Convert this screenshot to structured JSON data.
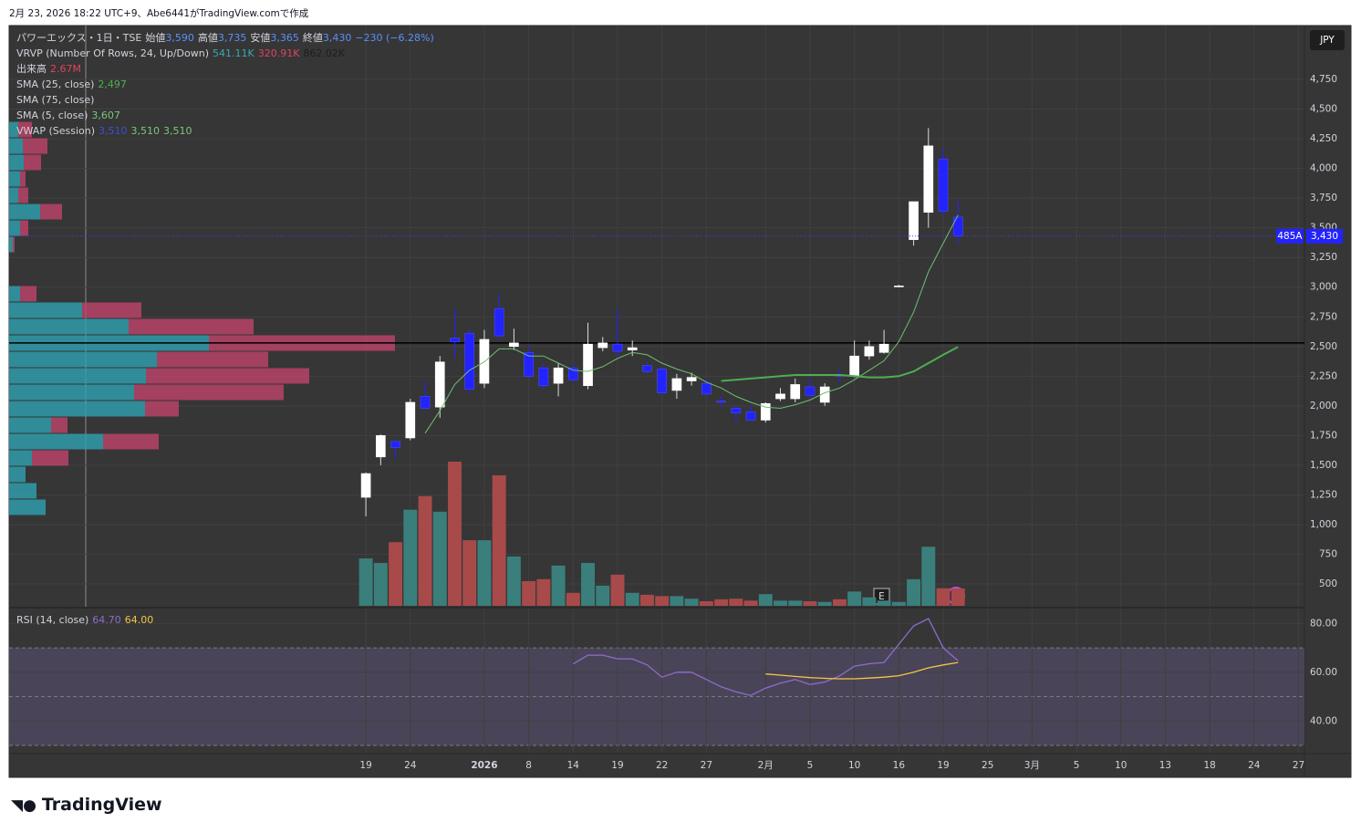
{
  "header": {
    "text": "2月 23, 2026 18:22 UTC+9、Abe6441がTradingView.comで作成"
  },
  "footer": {
    "logo": "TradingView"
  },
  "legend": {
    "main": {
      "symbol": "パワーエックス・1日・TSE",
      "open_label": "始値",
      "open": "3,590",
      "high_label": "高値",
      "high": "3,735",
      "low_label": "安値",
      "low": "3,365",
      "close_label": "終値",
      "close": "3,430",
      "change": "−230 (−6.28%)"
    },
    "vrvp": {
      "name": "VRVP (Number Of Rows, 24, Up/Down)",
      "values": [
        "541.11K",
        "320.91K",
        "862.02K"
      ]
    },
    "volume": {
      "name": "出来高",
      "value": "2.67M"
    },
    "sma25": {
      "name": "SMA (25, close)",
      "value": "2,497"
    },
    "sma75": {
      "name": "SMA (75, close)"
    },
    "sma5": {
      "name": "SMA (5, close)",
      "value": "3,607"
    },
    "vwap": {
      "name": "VWAP (Session)",
      "values": [
        "3,510",
        "3,510",
        "3,510"
      ]
    },
    "rsi": {
      "name": "RSI (14, close)",
      "values": [
        "64.70",
        "64.00"
      ]
    }
  },
  "chart_data": {
    "type": "candlestick",
    "currency": "JPY",
    "last_price_label": "3,430",
    "symbol_badge": "485A",
    "up_color": "#ffffff",
    "down_color": "#2323ff",
    "volume_up_color": "#3a7f7c",
    "volume_down_color": "#a84a4a",
    "open": [
      1230,
      1570,
      1700,
      1730,
      2080,
      1990,
      2570,
      2610,
      2190,
      2820,
      2500,
      2450,
      2320,
      2190,
      2320,
      2170,
      2490,
      2520,
      2470,
      2340,
      2310,
      2130,
      2210,
      2190,
      2040,
      1980,
      1950,
      1880,
      2060,
      2060,
      2160,
      2030,
      2260,
      2250,
      2420,
      2450,
      3010,
      3400,
      3630,
      4080,
      3590
    ],
    "high": [
      1440,
      1760,
      1720,
      2060,
      2200,
      2420,
      2820,
      2650,
      2640,
      2940,
      2650,
      2510,
      2360,
      2360,
      2360,
      2700,
      2580,
      2820,
      2550,
      2370,
      2330,
      2270,
      2280,
      2230,
      2080,
      2010,
      2010,
      2030,
      2150,
      2230,
      2240,
      2190,
      2310,
      2550,
      2550,
      2640,
      3020,
      3720,
      4340,
      4170,
      3735
    ],
    "low": [
      1070,
      1500,
      1560,
      1710,
      1960,
      1900,
      2400,
      2100,
      2150,
      2560,
      2470,
      2230,
      2140,
      2080,
      2190,
      2140,
      2460,
      2410,
      2420,
      2270,
      2090,
      2060,
      2170,
      2080,
      1990,
      1860,
      1870,
      1860,
      2040,
      2030,
      2060,
      2000,
      2200,
      2240,
      2390,
      2440,
      3000,
      3350,
      3500,
      3600,
      3365
    ],
    "close": [
      1430,
      1750,
      1650,
      2030,
      1980,
      2370,
      2540,
      2140,
      2560,
      2590,
      2530,
      2250,
      2170,
      2320,
      2220,
      2520,
      2530,
      2460,
      2490,
      2290,
      2110,
      2230,
      2240,
      2100,
      2030,
      1940,
      1880,
      2020,
      2100,
      2180,
      2090,
      2160,
      2250,
      2420,
      2500,
      2520,
      3010,
      3720,
      4190,
      3640,
      3430
    ],
    "volume": [
      7.3,
      6.6,
      9.8,
      14.8,
      16.9,
      14.5,
      22.2,
      10.1,
      10.1,
      20.1,
      7.6,
      3.8,
      4.1,
      6.2,
      2.0,
      6.6,
      3.1,
      4.8,
      2.0,
      1.7,
      1.5,
      1.5,
      1.1,
      0.7,
      1.0,
      1.1,
      0.8,
      1.8,
      0.8,
      0.8,
      0.7,
      0.6,
      1.0,
      2.2,
      1.3,
      0.8,
      0.6,
      4.1,
      9.1,
      2.7,
      2.67
    ],
    "volume_lim": [
      0,
      26.7
    ],
    "sma5": {
      "color": "#6fbf73",
      "values": [
        null,
        null,
        null,
        null,
        1770,
        1960,
        2180,
        2300,
        2370,
        2480,
        2480,
        2420,
        2420,
        2360,
        2300,
        2290,
        2330,
        2400,
        2450,
        2430,
        2360,
        2310,
        2270,
        2200,
        2150,
        2080,
        2030,
        1990,
        1980,
        2010,
        2050,
        2110,
        2150,
        2220,
        2300,
        2380,
        2540,
        2790,
        3130,
        3370,
        3607
      ]
    },
    "sma25": {
      "color": "#4caf50",
      "values": [
        null,
        null,
        null,
        null,
        null,
        null,
        null,
        null,
        null,
        null,
        null,
        null,
        null,
        null,
        null,
        null,
        null,
        null,
        null,
        null,
        null,
        null,
        null,
        null,
        2210,
        2220,
        2230,
        2240,
        2250,
        2260,
        2260,
        2260,
        2260,
        2250,
        2240,
        2240,
        2250,
        2290,
        2360,
        2430,
        2497
      ]
    },
    "hline": {
      "value": 2530,
      "color": "#000000"
    },
    "vrvp": {
      "price_range": [
        1077,
        4396
      ],
      "lim": [
        0,
        423
      ],
      "up_color": "#2ea3b1",
      "down_color": "#c0436b",
      "up": [
        10,
        15,
        16,
        12,
        10,
        34,
        12,
        4,
        0,
        0,
        12,
        80,
        131,
        219,
        162,
        150,
        137,
        149,
        46,
        103,
        25,
        18,
        30,
        40
      ],
      "down": [
        15,
        27,
        19,
        6,
        11,
        24,
        9,
        2,
        0,
        0,
        18,
        65,
        137,
        204,
        122,
        179,
        164,
        37,
        18,
        61,
        40,
        0,
        0,
        0
      ]
    },
    "xlim": [
      -24.1,
      63.4
    ],
    "xticks": [
      {
        "value": 0,
        "label": "19"
      },
      {
        "value": 3,
        "label": "24"
      },
      {
        "value": 8,
        "label": "2026"
      },
      {
        "value": 11,
        "label": "8"
      },
      {
        "value": 14,
        "label": "14"
      },
      {
        "value": 17,
        "label": "19"
      },
      {
        "value": 20,
        "label": "22"
      },
      {
        "value": 23,
        "label": "27"
      },
      {
        "value": 27,
        "label": "2月"
      },
      {
        "value": 30,
        "label": "5"
      },
      {
        "value": 33,
        "label": "10"
      },
      {
        "value": 36,
        "label": "16"
      },
      {
        "value": 39,
        "label": "19"
      },
      {
        "value": 42,
        "label": "25"
      },
      {
        "value": 45,
        "label": "3月"
      },
      {
        "value": 48,
        "label": "5"
      },
      {
        "value": 51,
        "label": "10"
      },
      {
        "value": 54,
        "label": "13"
      },
      {
        "value": 57,
        "label": "18"
      },
      {
        "value": 60,
        "label": "24"
      },
      {
        "value": 63,
        "label": "27"
      }
    ],
    "ylim": [
      316,
      5188
    ],
    "yticks": [
      500,
      750,
      {
        "value": 1000,
        "label": "1,000"
      },
      {
        "value": 1250,
        "label": "1,250"
      },
      {
        "value": 1500,
        "label": "1,500"
      },
      {
        "value": 1750,
        "label": "1,750"
      },
      {
        "value": 2000,
        "label": "2,000"
      },
      {
        "value": 2250,
        "label": "2,250"
      },
      {
        "value": 2500,
        "label": "2,500"
      },
      {
        "value": 2750,
        "label": "2,750"
      },
      {
        "value": 3000,
        "label": "3,000"
      },
      {
        "value": 3250,
        "label": "3,250"
      },
      {
        "value": 3500,
        "label": "3,500"
      },
      {
        "value": 3750,
        "label": "3,750"
      },
      {
        "value": 4000,
        "label": "4,000"
      },
      {
        "value": 4250,
        "label": "4,250"
      },
      {
        "value": 4500,
        "label": "4,500"
      },
      {
        "value": 4750,
        "label": "4,750"
      }
    ],
    "grid": true,
    "rsi": {
      "ylim": [
        27,
        85
      ],
      "yticks": [
        {
          "value": 40,
          "label": "40.00"
        },
        {
          "value": 60,
          "label": "60.00"
        },
        {
          "value": 80,
          "label": "80.00"
        }
      ],
      "bands": [
        70,
        50,
        30
      ],
      "band_color": "#4a4458",
      "color": "#8e6ccf",
      "ma_color": "#f5c542",
      "values": [
        null,
        null,
        null,
        null,
        null,
        null,
        null,
        null,
        null,
        null,
        null,
        null,
        null,
        null,
        63.4,
        67,
        67,
        65.5,
        65.5,
        63,
        58,
        60,
        60,
        57,
        54,
        52,
        50.5,
        53.5,
        55.5,
        57,
        55,
        56,
        58.5,
        62.5,
        63.5,
        64,
        71.5,
        79,
        82,
        70,
        64.7
      ],
      "ma": [
        null,
        null,
        null,
        null,
        null,
        null,
        null,
        null,
        null,
        null,
        null,
        null,
        null,
        null,
        null,
        null,
        null,
        null,
        null,
        null,
        null,
        null,
        null,
        null,
        null,
        null,
        null,
        59.3,
        58.8,
        58.3,
        57.8,
        57.5,
        57.3,
        57.3,
        57.6,
        58,
        58.6,
        60,
        61.8,
        63,
        64.0
      ]
    }
  }
}
